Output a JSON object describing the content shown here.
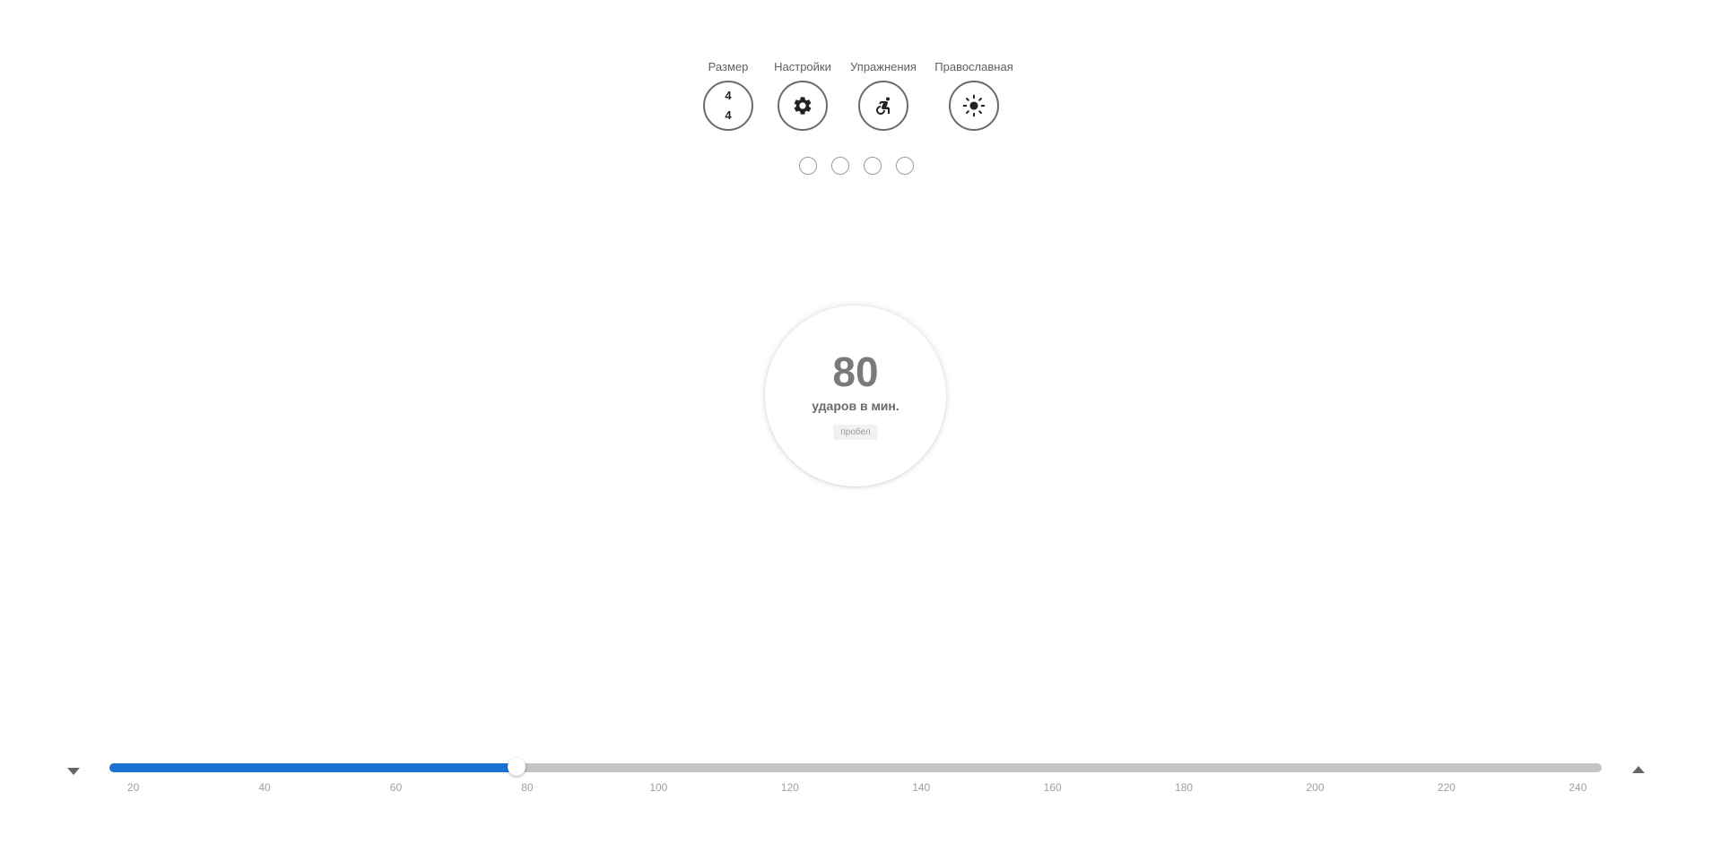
{
  "controls": [
    {
      "id": "size",
      "label": "Размер",
      "kind": "signature",
      "numerator": "4",
      "denominator": "4"
    },
    {
      "id": "settings",
      "label": "Настройки",
      "kind": "icon",
      "icon": "gear-icon"
    },
    {
      "id": "exercises",
      "label": "Упражнения",
      "kind": "icon",
      "icon": "accessible-forward-icon"
    },
    {
      "id": "theme",
      "label": "Православная",
      "kind": "icon",
      "icon": "sun-icon"
    }
  ],
  "beats": [
    {
      "active": false
    },
    {
      "active": false
    },
    {
      "active": false
    },
    {
      "active": false
    }
  ],
  "tempo": {
    "bpm": "80",
    "unit": "ударов в мин.",
    "key_hint": "пробел"
  },
  "slider": {
    "min": 20,
    "max": 240,
    "value": 80,
    "fill_color": "#1a73d4",
    "track_color": "#c4c4c4",
    "ticks": [
      "20",
      "40",
      "60",
      "80",
      "100",
      "120",
      "140",
      "160",
      "180",
      "200",
      "220",
      "240"
    ]
  }
}
